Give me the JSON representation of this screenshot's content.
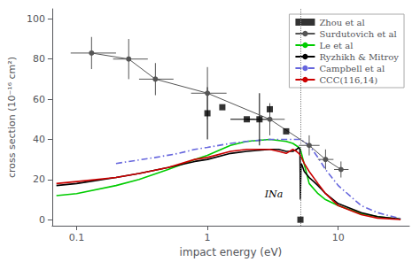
{
  "chart_data": {
    "type": "line",
    "xlabel": "impact energy (eV)",
    "ylabel": "cross section (10⁻¹⁶ cm²)",
    "log": "x",
    "xlim": [
      0.065,
      35.0
    ],
    "ylim": [
      -3,
      105
    ],
    "xticks": [
      0.1,
      1,
      10
    ],
    "yticks": [
      0,
      20,
      40,
      60,
      80,
      100
    ],
    "grid": false,
    "legend": "upper right",
    "annotations": [
      {
        "text": "INa",
        "x": 5.14
      }
    ],
    "series": [
      {
        "name": "Zhou et al",
        "type": "scatter",
        "marker": "square",
        "color": "#000000",
        "x": [
          1.0,
          1.3,
          2.0,
          2.5,
          3.0,
          4.0,
          5.14
        ],
        "values": [
          53,
          56,
          50,
          50,
          55,
          44,
          0
        ],
        "yerr": [
          13,
          0,
          0,
          13,
          0,
          0,
          0
        ],
        "xerr_low": [
          0.0,
          0.0,
          0.5,
          0.5,
          0.0,
          0.0,
          0.0
        ],
        "xerr_high": [
          0.0,
          0.0,
          0.5,
          0.5,
          0.0,
          0.0,
          0.0
        ]
      },
      {
        "name": "Surdutovich et al",
        "type": "line",
        "marker": "circle",
        "line_style": "solid",
        "color": "#555555",
        "x": [
          0.13,
          0.25,
          0.4,
          1.0,
          3.0,
          6.0,
          8.0,
          10.5
        ],
        "values": [
          83,
          80,
          70,
          63,
          50,
          37,
          30,
          25
        ],
        "yerr": [
          8,
          10,
          8,
          13,
          8,
          5,
          5,
          4
        ],
        "xerr_low": [
          0.04,
          0.06,
          0.1,
          0.25,
          0.7,
          1.0,
          1.0,
          1.2
        ],
        "xerr_high": [
          0.07,
          0.1,
          0.15,
          0.4,
          0.9,
          1.2,
          1.2,
          1.5
        ]
      },
      {
        "name": "Le et al",
        "type": "line",
        "line_style": "solid",
        "color": "#00cc00",
        "x": [
          0.07,
          0.1,
          0.2,
          0.3,
          0.5,
          0.8,
          1.0,
          1.5,
          2.0,
          3.0,
          4.0,
          4.5,
          5.0,
          5.14,
          6.0,
          7.0,
          8.0,
          10.0,
          15.0,
          20.0,
          30.0
        ],
        "values": [
          12,
          13,
          17,
          20,
          25,
          30,
          32,
          37,
          39,
          40,
          39,
          38,
          36,
          35,
          18,
          13,
          10,
          7,
          3,
          1.5,
          0.3
        ]
      },
      {
        "name": "Ryzhikh & Mitroy",
        "type": "line",
        "line_style": "solid",
        "color": "#000000",
        "x": [
          0.07,
          0.1,
          0.2,
          0.3,
          0.5,
          0.8,
          1.0,
          1.5,
          2.0,
          3.0,
          3.5,
          4.0,
          4.5,
          4.8,
          5.0,
          5.1,
          5.14,
          5.2,
          5.3,
          5.5,
          6.0,
          6.5,
          7.0,
          7.5,
          8.0,
          10.0,
          15.0,
          20.0,
          30.0
        ],
        "values": [
          17,
          18,
          21,
          23,
          26,
          29,
          30,
          33,
          34,
          35,
          35,
          34,
          34,
          35,
          36,
          35,
          10,
          28,
          27,
          24,
          21,
          19,
          17,
          15,
          13,
          8,
          3.5,
          1.5,
          0.3
        ]
      },
      {
        "name": "Campbell et al",
        "type": "line",
        "line_style": "dashdot",
        "color": "#6666dd",
        "x": [
          0.2,
          0.4,
          0.6,
          0.8,
          1.0,
          1.5,
          2.0,
          3.0,
          4.0,
          5.0,
          5.14,
          6.0,
          7.0,
          8.0,
          10.0,
          15.0,
          20.0,
          30.0
        ],
        "values": [
          28,
          31,
          33,
          35,
          36,
          38,
          39,
          40,
          40,
          40,
          40,
          37,
          31,
          25,
          17,
          7,
          3.5,
          0.5
        ]
      },
      {
        "name": "CCC(116,14)",
        "type": "line",
        "line_style": "solid",
        "color": "#cc0000",
        "x": [
          0.07,
          0.1,
          0.2,
          0.3,
          0.5,
          0.8,
          1.0,
          1.5,
          2.0,
          3.0,
          3.5,
          4.0,
          4.5,
          4.8,
          5.0,
          5.14,
          5.5,
          6.0,
          7.0,
          8.0,
          10.0,
          15.0,
          20.0,
          30.0
        ],
        "values": [
          18,
          19,
          21,
          23,
          26,
          30,
          31,
          34,
          35,
          35,
          34,
          33,
          35,
          34,
          33,
          32,
          28,
          24,
          18,
          13,
          7,
          2.5,
          0.8,
          0.1
        ]
      }
    ]
  }
}
